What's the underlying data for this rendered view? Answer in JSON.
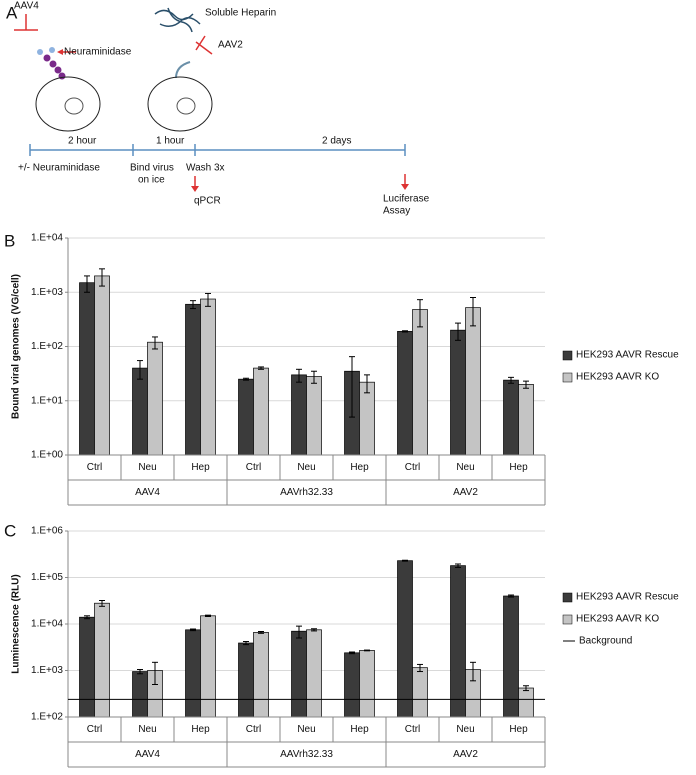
{
  "panel_labels": [
    "A",
    "B",
    "C"
  ],
  "diagram": {
    "aav4": "AAV4",
    "neuraminidase": "Neuraminidase",
    "soluble_heparin": "Soluble Heparin",
    "aav2": "AAV2",
    "step1_duration": "2 hour",
    "step2_duration": "1 hour",
    "step3_duration": "2 days",
    "step1": "+/- Neuraminidase",
    "step2_line1": "Bind virus",
    "step2_line2": "on ice",
    "step3": "Wash 3x",
    "readout1": "qPCR",
    "readout2_line1": "Luciferase",
    "readout2_line2": "Assay"
  },
  "chart_data": [
    {
      "type": "bar",
      "y_label": "Bound viral genomes (VG/cell)",
      "categories": [
        "Ctrl",
        "Neu",
        "Hep",
        "Ctrl",
        "Neu",
        "Hep",
        "Ctrl",
        "Neu",
        "Hep"
      ],
      "groups": [
        "AAV4",
        "AAVrh32.33",
        "AAV2"
      ],
      "series": [
        {
          "name": "HEK293 AAVR Rescue",
          "color": "#3b3b3b",
          "values": [
            1500,
            40,
            600,
            25,
            30,
            35,
            190,
            200,
            24
          ],
          "errors": [
            500,
            15,
            100,
            1,
            8,
            30,
            5,
            70,
            3
          ]
        },
        {
          "name": "HEK293 AAVR KO",
          "color": "#c4c4c4",
          "values": [
            2000,
            120,
            750,
            40,
            28,
            22,
            480,
            520,
            20
          ],
          "errors": [
            700,
            30,
            200,
            2,
            7,
            8,
            250,
            280,
            3
          ]
        }
      ],
      "ylim": [
        1,
        10000
      ],
      "yticks": [
        {
          "value": 1,
          "label": "1.E+00"
        },
        {
          "value": 10,
          "label": "1.E+01"
        },
        {
          "value": 100,
          "label": "1.E+02"
        },
        {
          "value": 1000,
          "label": "1.E+03"
        },
        {
          "value": 10000,
          "label": "1.E+04"
        }
      ],
      "log_scale": true,
      "grid": true,
      "legend": "right"
    },
    {
      "type": "bar",
      "y_label": "Luminescence (RLU)",
      "categories": [
        "Ctrl",
        "Neu",
        "Hep",
        "Ctrl",
        "Neu",
        "Hep",
        "Ctrl",
        "Neu",
        "Hep"
      ],
      "groups": [
        "AAV4",
        "AAVrh32.33",
        "AAV2"
      ],
      "series": [
        {
          "name": "HEK293 AAVR Rescue",
          "color": "#3b3b3b",
          "values": [
            14000,
            950,
            7500,
            3900,
            7000,
            2400,
            230000,
            180000,
            40000
          ],
          "errors": [
            1000,
            100,
            300,
            300,
            2000,
            100,
            5000,
            15000,
            2000
          ]
        },
        {
          "name": "HEK293 AAVR KO",
          "color": "#c4c4c4",
          "values": [
            28000,
            1000,
            15000,
            6600,
            7500,
            2700,
            1150,
            1050,
            420
          ],
          "errors": [
            4000,
            500,
            500,
            300,
            400,
            50,
            200,
            450,
            50
          ]
        }
      ],
      "reference_line": {
        "name": "Background",
        "value": 240,
        "color": "#000000"
      },
      "ylim": [
        100,
        1000000
      ],
      "yticks": [
        {
          "value": 100,
          "label": "1.E+02"
        },
        {
          "value": 1000,
          "label": "1.E+03"
        },
        {
          "value": 10000,
          "label": "1.E+04"
        },
        {
          "value": 100000,
          "label": "1.E+05"
        },
        {
          "value": 1000000,
          "label": "1.E+06"
        }
      ],
      "log_scale": true,
      "grid": true,
      "legend": "right"
    }
  ]
}
